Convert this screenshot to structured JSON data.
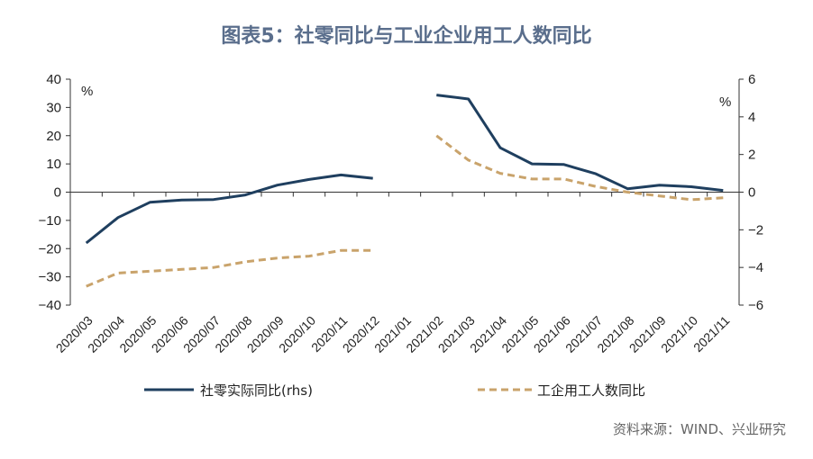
{
  "chart_data": {
    "type": "line",
    "title": "图表5：社零同比与工业企业用工人数同比",
    "categories": [
      "2020/03",
      "2020/04",
      "2020/05",
      "2020/06",
      "2020/07",
      "2020/08",
      "2020/09",
      "2020/10",
      "2020/11",
      "2020/12",
      "2021/01",
      "2021/02",
      "2021/03",
      "2021/04",
      "2021/05",
      "2021/06",
      "2021/07",
      "2021/08",
      "2021/09",
      "2021/10",
      "2021/11"
    ],
    "left_axis": {
      "unit": "%",
      "min": -40,
      "max": 40,
      "ticks": [
        40,
        30,
        20,
        10,
        0,
        -10,
        -20,
        -30,
        -40
      ]
    },
    "right_axis": {
      "unit": "%",
      "min": -6,
      "max": 6,
      "ticks": [
        6,
        4,
        2,
        0,
        -2,
        -4,
        -6
      ]
    },
    "series": [
      {
        "name": "社零实际同比(rhs)",
        "axis": "left",
        "color": "#1f3f5f",
        "dash": "solid",
        "values": [
          -18,
          -9,
          -3.6,
          -2.8,
          -2.6,
          -1,
          2.5,
          4.5,
          6.1,
          4.9,
          null,
          34.4,
          33,
          15.7,
          10,
          9.8,
          6.5,
          1.2,
          2.5,
          1.9,
          0.6
        ]
      },
      {
        "name": "工企用工人数同比",
        "axis": "right",
        "color": "#c9a36b",
        "dash": "dashed",
        "values": [
          -5,
          -4.3,
          -4.2,
          -4.1,
          -4,
          -3.7,
          -3.5,
          -3.4,
          -3.1,
          -3.1,
          null,
          3,
          1.7,
          1,
          0.7,
          0.7,
          0.3,
          0,
          -0.2,
          -0.4,
          -0.3
        ]
      }
    ],
    "source": "资料来源：WIND、兴业研究"
  }
}
